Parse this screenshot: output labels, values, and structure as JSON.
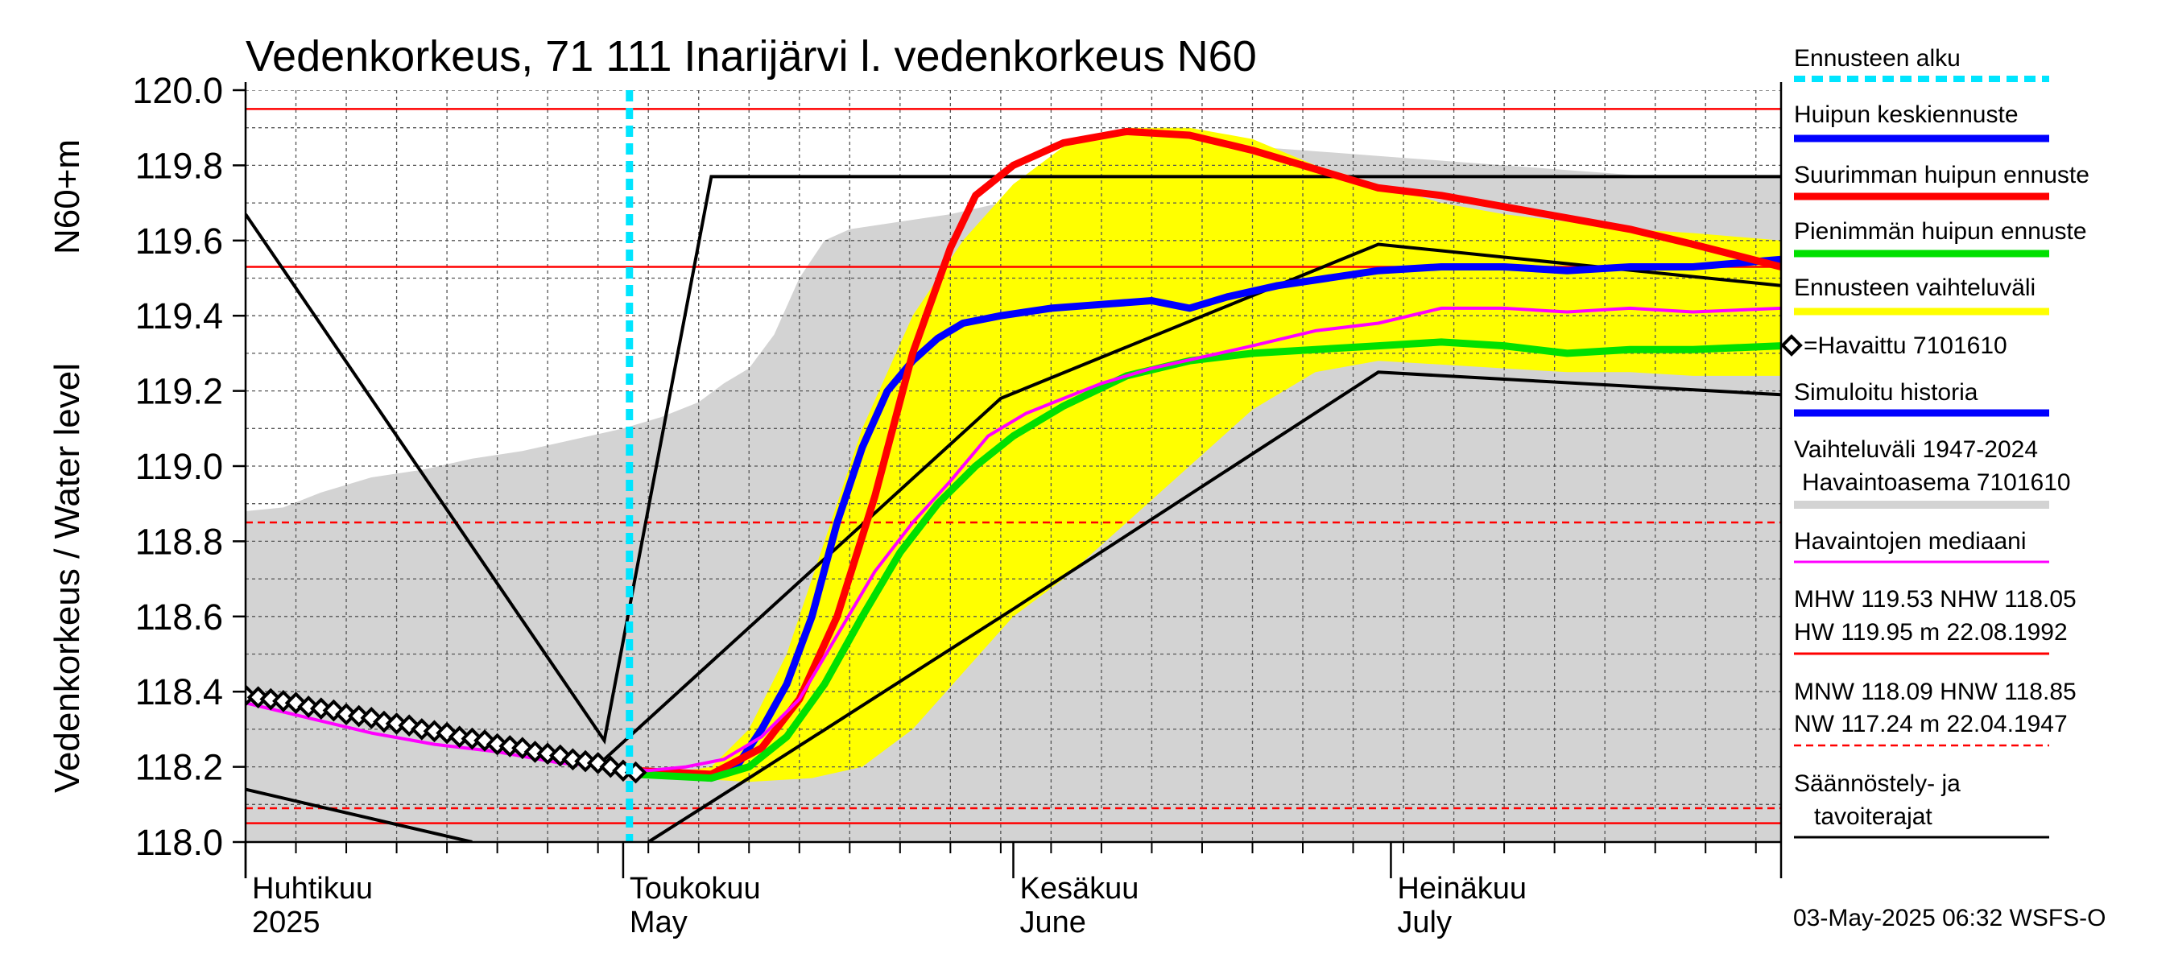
{
  "chart_data": {
    "type": "line",
    "title": "Vedenkorkeus, 71 111 Inarijärvi l. vedenkorkeus N60",
    "ylabel_top": "N60+m",
    "ylabel": "Vedenkorkeus / Water level",
    "ylim": [
      118.0,
      120.0
    ],
    "xlim_days": [
      0,
      122
    ],
    "y_ticks": [
      "118.0",
      "118.2",
      "118.4",
      "118.6",
      "118.8",
      "119.0",
      "119.2",
      "119.4",
      "119.6",
      "119.8",
      "120.0"
    ],
    "months": [
      {
        "day": 0,
        "fi": "Huhtikuu",
        "en": "2025"
      },
      {
        "day": 30,
        "fi": "Toukokuu",
        "en": "May"
      },
      {
        "day": 61,
        "fi": "Kesäkuu",
        "en": "June"
      },
      {
        "day": 91,
        "fi": "Heinäkuu",
        "en": "July"
      }
    ],
    "forecast_start_day": 30.5,
    "ref_lines": [
      {
        "name": "HW",
        "value": 119.95,
        "style": "solid"
      },
      {
        "name": "MHW",
        "value": 119.53,
        "style": "solid"
      },
      {
        "name": "NHW",
        "value": 118.05,
        "style": "solid"
      },
      {
        "name": "MNW",
        "value": 118.09,
        "style": "dashed"
      },
      {
        "name": "HNW",
        "value": 118.85,
        "style": "dashed"
      }
    ],
    "historical_range": {
      "upper": [
        [
          0,
          118.88
        ],
        [
          3,
          118.89
        ],
        [
          6,
          118.93
        ],
        [
          10,
          118.97
        ],
        [
          14,
          118.99
        ],
        [
          18,
          119.02
        ],
        [
          22,
          119.04
        ],
        [
          26,
          119.07
        ],
        [
          30,
          119.1
        ],
        [
          33,
          119.13
        ],
        [
          36,
          119.17
        ],
        [
          38,
          119.22
        ],
        [
          40,
          119.26
        ],
        [
          42,
          119.35
        ],
        [
          44,
          119.5
        ],
        [
          46,
          119.6
        ],
        [
          48,
          119.63
        ],
        [
          52,
          119.65
        ],
        [
          56,
          119.67
        ],
        [
          60,
          119.7
        ],
        [
          64,
          119.76
        ],
        [
          68,
          119.8
        ],
        [
          72,
          119.83
        ],
        [
          76,
          119.84
        ],
        [
          80,
          119.85
        ],
        [
          84,
          119.84
        ],
        [
          88,
          119.83
        ],
        [
          92,
          119.82
        ],
        [
          96,
          119.81
        ],
        [
          100,
          119.8
        ],
        [
          104,
          119.79
        ],
        [
          108,
          119.78
        ],
        [
          112,
          119.77
        ],
        [
          116,
          119.77
        ],
        [
          122,
          119.77
        ]
      ],
      "lower": [
        [
          0,
          118.0
        ],
        [
          122,
          118.0
        ]
      ]
    },
    "ensemble_band": {
      "upper": [
        [
          31,
          118.17
        ],
        [
          37,
          118.2
        ],
        [
          40,
          118.3
        ],
        [
          43,
          118.5
        ],
        [
          46,
          118.8
        ],
        [
          49,
          119.1
        ],
        [
          53,
          119.4
        ],
        [
          57,
          119.6
        ],
        [
          61,
          119.75
        ],
        [
          65,
          119.85
        ],
        [
          70,
          119.9
        ],
        [
          75,
          119.9
        ],
        [
          80,
          119.87
        ],
        [
          85,
          119.8
        ],
        [
          90,
          119.75
        ],
        [
          95,
          119.7
        ],
        [
          100,
          119.67
        ],
        [
          105,
          119.65
        ],
        [
          110,
          119.63
        ],
        [
          115,
          119.62
        ],
        [
          122,
          119.6
        ]
      ],
      "lower": [
        [
          122,
          119.24
        ],
        [
          115,
          119.24
        ],
        [
          110,
          119.25
        ],
        [
          105,
          119.25
        ],
        [
          100,
          119.26
        ],
        [
          95,
          119.27
        ],
        [
          90,
          119.28
        ],
        [
          85,
          119.25
        ],
        [
          80,
          119.15
        ],
        [
          75,
          119.0
        ],
        [
          70,
          118.85
        ],
        [
          65,
          118.7
        ],
        [
          61,
          118.6
        ],
        [
          57,
          118.45
        ],
        [
          53,
          118.3
        ],
        [
          49,
          118.2
        ],
        [
          45,
          118.17
        ],
        [
          40,
          118.16
        ],
        [
          35,
          118.17
        ],
        [
          31,
          118.17
        ]
      ]
    },
    "series": [
      {
        "name": "Huipun keskiennuste",
        "color": "#0000ff",
        "width": 9,
        "points": [
          [
            31,
            118.19
          ],
          [
            34,
            118.18
          ],
          [
            37,
            118.17
          ],
          [
            39,
            118.2
          ],
          [
            41,
            118.3
          ],
          [
            43,
            118.42
          ],
          [
            45,
            118.6
          ],
          [
            47,
            118.85
          ],
          [
            49,
            119.05
          ],
          [
            51,
            119.2
          ],
          [
            53,
            119.28
          ],
          [
            55,
            119.34
          ],
          [
            57,
            119.38
          ],
          [
            60,
            119.4
          ],
          [
            64,
            119.42
          ],
          [
            68,
            119.43
          ],
          [
            72,
            119.44
          ],
          [
            75,
            119.42
          ],
          [
            78,
            119.45
          ],
          [
            82,
            119.48
          ],
          [
            86,
            119.5
          ],
          [
            90,
            119.52
          ],
          [
            95,
            119.53
          ],
          [
            100,
            119.53
          ],
          [
            105,
            119.52
          ],
          [
            110,
            119.53
          ],
          [
            115,
            119.53
          ],
          [
            122,
            119.55
          ]
        ]
      },
      {
        "name": "Suurimman huipun ennuste",
        "color": "#ff0000",
        "width": 9,
        "points": [
          [
            31,
            118.19
          ],
          [
            37,
            118.18
          ],
          [
            41,
            118.25
          ],
          [
            44,
            118.38
          ],
          [
            47,
            118.6
          ],
          [
            50,
            118.92
          ],
          [
            53,
            119.3
          ],
          [
            56,
            119.58
          ],
          [
            58,
            119.72
          ],
          [
            61,
            119.8
          ],
          [
            65,
            119.86
          ],
          [
            70,
            119.89
          ],
          [
            75,
            119.88
          ],
          [
            80,
            119.84
          ],
          [
            85,
            119.79
          ],
          [
            90,
            119.74
          ],
          [
            95,
            119.72
          ],
          [
            100,
            119.69
          ],
          [
            105,
            119.66
          ],
          [
            110,
            119.63
          ],
          [
            115,
            119.59
          ],
          [
            122,
            119.53
          ]
        ]
      },
      {
        "name": "Pienimmän huipun ennuste",
        "color": "#00e000",
        "width": 9,
        "points": [
          [
            31,
            118.18
          ],
          [
            37,
            118.17
          ],
          [
            40,
            118.2
          ],
          [
            43,
            118.28
          ],
          [
            46,
            118.42
          ],
          [
            49,
            118.6
          ],
          [
            52,
            118.77
          ],
          [
            55,
            118.9
          ],
          [
            58,
            119.0
          ],
          [
            61,
            119.08
          ],
          [
            65,
            119.16
          ],
          [
            70,
            119.24
          ],
          [
            75,
            119.28
          ],
          [
            80,
            119.3
          ],
          [
            85,
            119.31
          ],
          [
            90,
            119.32
          ],
          [
            95,
            119.33
          ],
          [
            100,
            119.32
          ],
          [
            105,
            119.3
          ],
          [
            110,
            119.31
          ],
          [
            115,
            119.31
          ],
          [
            122,
            119.32
          ]
        ]
      },
      {
        "name": "Havaintojen mediaani",
        "color": "#ff00ff",
        "width": 4,
        "points": [
          [
            0,
            118.37
          ],
          [
            5,
            118.33
          ],
          [
            10,
            118.29
          ],
          [
            15,
            118.26
          ],
          [
            20,
            118.24
          ],
          [
            25,
            118.21
          ],
          [
            29,
            118.2
          ],
          [
            32,
            118.19
          ],
          [
            35,
            118.2
          ],
          [
            38,
            118.22
          ],
          [
            41,
            118.28
          ],
          [
            44,
            118.38
          ],
          [
            47,
            118.55
          ],
          [
            50,
            118.72
          ],
          [
            53,
            118.85
          ],
          [
            56,
            118.96
          ],
          [
            59,
            119.08
          ],
          [
            62,
            119.14
          ],
          [
            65,
            119.18
          ],
          [
            68,
            119.22
          ],
          [
            72,
            119.26
          ],
          [
            76,
            119.29
          ],
          [
            80,
            119.32
          ],
          [
            85,
            119.36
          ],
          [
            90,
            119.38
          ],
          [
            95,
            119.42
          ],
          [
            100,
            119.42
          ],
          [
            105,
            119.41
          ],
          [
            110,
            119.42
          ],
          [
            115,
            119.41
          ],
          [
            122,
            119.42
          ]
        ]
      }
    ],
    "observed": {
      "name": "=Havaittu 7101610",
      "points": [
        [
          0,
          118.39
        ],
        [
          1,
          118.385
        ],
        [
          2,
          118.38
        ],
        [
          3,
          118.375
        ],
        [
          4,
          118.37
        ],
        [
          5,
          118.36
        ],
        [
          6,
          118.355
        ],
        [
          7,
          118.35
        ],
        [
          8,
          118.34
        ],
        [
          9,
          118.335
        ],
        [
          10,
          118.33
        ],
        [
          11,
          118.32
        ],
        [
          12,
          118.315
        ],
        [
          13,
          118.31
        ],
        [
          14,
          118.3
        ],
        [
          15,
          118.295
        ],
        [
          16,
          118.29
        ],
        [
          17,
          118.28
        ],
        [
          18,
          118.275
        ],
        [
          19,
          118.27
        ],
        [
          20,
          118.26
        ],
        [
          21,
          118.255
        ],
        [
          22,
          118.25
        ],
        [
          23,
          118.24
        ],
        [
          24,
          118.235
        ],
        [
          25,
          118.23
        ],
        [
          26,
          118.22
        ],
        [
          27,
          118.215
        ],
        [
          28,
          118.21
        ],
        [
          29,
          118.2
        ],
        [
          30,
          118.19
        ],
        [
          31,
          118.185
        ]
      ]
    },
    "regulation_limits": [
      [
        [
          0,
          119.67
        ],
        [
          28.5,
          118.27
        ],
        [
          37,
          119.77
        ],
        [
          122,
          119.77
        ]
      ],
      [
        [
          28.5,
          118.22
        ],
        [
          60,
          119.18
        ],
        [
          90,
          119.59
        ],
        [
          122,
          119.48
        ]
      ],
      [
        [
          32,
          118.0
        ],
        [
          40,
          118.17
        ],
        [
          61,
          118.62
        ],
        [
          90,
          119.25
        ],
        [
          122,
          119.19
        ]
      ],
      [
        [
          0,
          118.14
        ],
        [
          18,
          118.0
        ]
      ]
    ]
  },
  "legend": [
    {
      "label": "Ennusteen alku",
      "color": "#00e5ff",
      "style": "dotted"
    },
    {
      "label": "Huipun keskiennuste",
      "color": "#0000ff",
      "style": "solid"
    },
    {
      "label": "Suurimman huipun ennuste",
      "color": "#ff0000",
      "style": "solid"
    },
    {
      "label": "Pienimmän huipun ennuste",
      "color": "#00e000",
      "style": "solid"
    },
    {
      "label": "Ennusteen vaihteluväli",
      "color": "#ffff00",
      "style": "solid"
    },
    {
      "label": "=Havaittu 7101610",
      "color": "#000000",
      "style": "marker"
    },
    {
      "label": "Simuloitu historia",
      "color": "#0000ff",
      "style": "solid"
    },
    {
      "label1": "Vaihteluväli 1947-2024",
      "label2": "Havaintoasema 7101610",
      "color": "#d3d3d3",
      "style": "band"
    },
    {
      "label": "Havaintojen mediaani",
      "color": "#ff00ff",
      "style": "thin"
    },
    {
      "label1": "MHW 119.53 NHW 118.05",
      "label2": "HW 119.95 m 22.08.1992",
      "color": "#ff0000",
      "style": "thin"
    },
    {
      "label1": "MNW 118.09 HNW 118.85",
      "label2": "NW 117.24 m 22.04.1947",
      "color": "#ff0000",
      "style": "dashed"
    },
    {
      "label1": "Säännöstely- ja",
      "label2": "tavoiterajat",
      "color": "#000000",
      "style": "thin"
    }
  ],
  "timestamp": "03-May-2025 06:32 WSFS-O"
}
